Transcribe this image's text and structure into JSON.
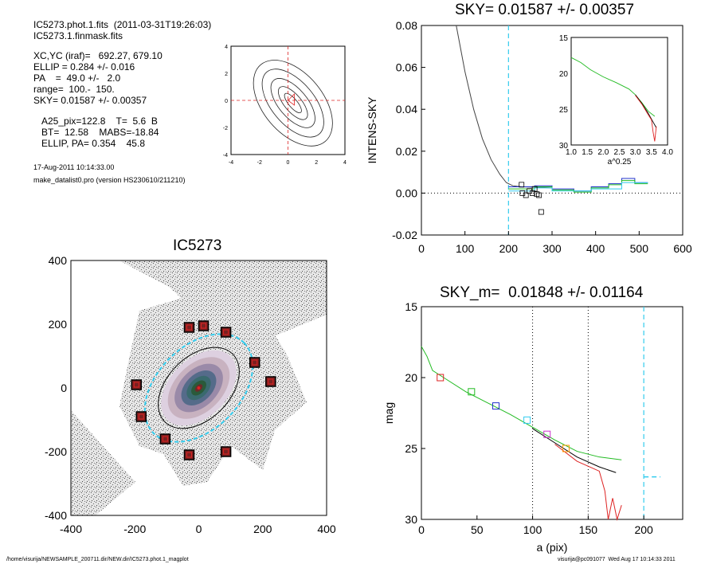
{
  "info": {
    "line1": "IC5273.phot.1.fits  (2011-03-31T19:26:03)",
    "line2": "IC5273.1.finmask.fits",
    "line3": "XC,YC (iraf)=   692.27, 679.10",
    "line4": "ELLIP = 0.284 +/- 0.016",
    "line5": "PA    =  49.0 +/-   2.0",
    "line6": "range=  100.-  150.",
    "line7": "SKY= 0.01587 +/- 0.00357",
    "line8": "A25_pix=122.8    T=  5.6  B",
    "line9": "BT=  12.58    MABS=-18.84",
    "line10": "ELLIP, PA= 0.354    45.8",
    "date": "17-Aug-2011 10:14:33.00",
    "program": "make_datalist0.pro (version HS230610/211210)"
  },
  "footer": {
    "path": "/home/visurija/NEWSAMPLE_200711.dir/NEW.dir/IC5273.phot.1_magplot",
    "user": "visurija@pc091077  Wed Aug 17 10:14:33 2011"
  },
  "colors": {
    "cyan": "#33ccee",
    "red": "#dd2222",
    "green": "#22bb22",
    "blue": "#2233cc",
    "magenta": "#cc33cc",
    "gray": "#555555"
  },
  "chart_data": [
    {
      "type": "line",
      "panel": "contour",
      "title": "",
      "xlim": [
        -4,
        4
      ],
      "ylim": [
        -4,
        4
      ],
      "xticks": [
        "-4",
        "-2",
        "0",
        "2",
        "4"
      ],
      "yticks": [
        "-4",
        "-2",
        "0",
        "2",
        "4"
      ],
      "contour_semi_axes": [
        [
          0.3,
          0.9
        ],
        [
          0.6,
          1.5
        ],
        [
          1.0,
          2.2
        ],
        [
          1.5,
          3.0
        ],
        [
          2.1,
          3.7
        ]
      ]
    },
    {
      "type": "line",
      "panel": "sky_profile",
      "title": "SKY= 0.01587 +/- 0.00357",
      "xlabel": "",
      "ylabel": "INTENS-SKY",
      "xlim": [
        0,
        600
      ],
      "ylim": [
        -0.02,
        0.08
      ],
      "xticks": [
        "0",
        "100",
        "200",
        "300",
        "400",
        "500",
        "600"
      ],
      "yticks": [
        "-0.02",
        "0.00",
        "0.02",
        "0.04",
        "0.06",
        "0.08"
      ],
      "sky_line_x": 200,
      "profile": [
        [
          80,
          0.08
        ],
        [
          100,
          0.058
        ],
        [
          120,
          0.04
        ],
        [
          140,
          0.026
        ],
        [
          160,
          0.016
        ],
        [
          180,
          0.009
        ],
        [
          195,
          0.005
        ],
        [
          210,
          0.0035
        ],
        [
          230,
          0.003
        ],
        [
          260,
          0.0028
        ],
        [
          300,
          0.0025
        ]
      ],
      "sky_boxes": [
        [
          230,
          0.004
        ],
        [
          232,
          0.0
        ],
        [
          240,
          -0.001
        ],
        [
          248,
          0.001
        ],
        [
          255,
          0.0
        ],
        [
          260,
          0.002
        ],
        [
          265,
          -0.0005
        ],
        [
          270,
          -0.001
        ],
        [
          275,
          -0.009
        ]
      ],
      "steps": [
        {
          "name": "blue",
          "points": [
            [
              200,
              0.003
            ],
            [
              260,
              0.003
            ],
            [
              260,
              0.0035
            ],
            [
              300,
              0.0035
            ],
            [
              300,
              0.002
            ],
            [
              350,
              0.002
            ],
            [
              350,
              0.001
            ],
            [
              390,
              0.001
            ],
            [
              390,
              0.003
            ],
            [
              430,
              0.003
            ],
            [
              430,
              0.0045
            ],
            [
              460,
              0.0045
            ],
            [
              460,
              0.007
            ],
            [
              490,
              0.007
            ],
            [
              490,
              0.005
            ],
            [
              520,
              0.005
            ]
          ]
        },
        {
          "name": "green",
          "points": [
            [
              200,
              0.002
            ],
            [
              260,
              0.002
            ],
            [
              260,
              0.003
            ],
            [
              300,
              0.003
            ],
            [
              300,
              0.0015
            ],
            [
              350,
              0.0015
            ],
            [
              350,
              0.0005
            ],
            [
              390,
              0.0005
            ],
            [
              390,
              0.0025
            ],
            [
              430,
              0.0025
            ],
            [
              430,
              0.004
            ],
            [
              460,
              0.004
            ],
            [
              460,
              0.006
            ],
            [
              490,
              0.006
            ],
            [
              490,
              0.0045
            ],
            [
              520,
              0.0045
            ]
          ]
        },
        {
          "name": "cyan",
          "points": [
            [
              200,
              0.001
            ],
            [
              260,
              0.001
            ],
            [
              260,
              0.0025
            ],
            [
              300,
              0.0025
            ],
            [
              300,
              0.001
            ],
            [
              390,
              0.001
            ],
            [
              390,
              0.002
            ],
            [
              460,
              0.002
            ],
            [
              460,
              0.005
            ],
            [
              520,
              0.005
            ]
          ]
        }
      ]
    },
    {
      "type": "line",
      "panel": "inset",
      "xlabel": "a^0.25",
      "xlim": [
        1.0,
        4.0
      ],
      "ylim": [
        15,
        30
      ],
      "xticks": [
        "1.0",
        "1.5",
        "2.0",
        "2.5",
        "3.0",
        "3.5",
        "4.0"
      ],
      "yticks": [
        "15",
        "20",
        "25",
        "30"
      ],
      "series": [
        {
          "name": "green",
          "points": [
            [
              1.0,
              17.8
            ],
            [
              1.3,
              18.5
            ],
            [
              1.6,
              19.5
            ],
            [
              2.0,
              20.5
            ],
            [
              2.4,
              21.3
            ],
            [
              2.8,
              22.2
            ],
            [
              3.0,
              23.0
            ],
            [
              3.2,
              24.1
            ],
            [
              3.4,
              25.3
            ],
            [
              3.6,
              26.0
            ]
          ]
        },
        {
          "name": "black",
          "points": [
            [
              3.0,
              23.0
            ],
            [
              3.2,
              24.2
            ],
            [
              3.4,
              25.6
            ],
            [
              3.55,
              26.8
            ],
            [
              3.65,
              27.6
            ]
          ]
        },
        {
          "name": "red",
          "points": [
            [
              3.0,
              23.1
            ],
            [
              3.2,
              24.3
            ],
            [
              3.4,
              25.8
            ],
            [
              3.5,
              26.5
            ],
            [
              3.55,
              28.2
            ],
            [
              3.6,
              29.5
            ],
            [
              3.65,
              27.4
            ]
          ]
        }
      ]
    },
    {
      "type": "scatter",
      "panel": "image",
      "title": "IC5273",
      "xlim": [
        -400,
        400
      ],
      "ylim": [
        -400,
        400
      ],
      "xticks": [
        "-400",
        "-200",
        "0",
        "200",
        "400"
      ],
      "yticks": [
        "-400",
        "-200",
        "0",
        "200",
        "400"
      ],
      "star_boxes": [
        [
          -30,
          190
        ],
        [
          15,
          195
        ],
        [
          85,
          175
        ],
        [
          175,
          80
        ],
        [
          225,
          20
        ],
        [
          -195,
          10
        ],
        [
          -180,
          -90
        ],
        [
          -105,
          -160
        ],
        [
          -30,
          -210
        ],
        [
          85,
          -200
        ]
      ],
      "ellipse_a25": {
        "a": 200,
        "b": 130,
        "angle_deg": 45
      }
    },
    {
      "type": "line",
      "panel": "mag_profile",
      "title": "SKY_m=  0.01848 +/- 0.01164",
      "xlabel": "a (pix)",
      "ylabel": "mag",
      "xlim": [
        0,
        235
      ],
      "ylim": [
        15,
        30
      ],
      "xticks": [
        "0",
        "50",
        "100",
        "150",
        "200"
      ],
      "yticks": [
        "15",
        "20",
        "25",
        "30"
      ],
      "vlines_dotted": [
        100,
        150
      ],
      "sky_line_x": 200,
      "series": [
        {
          "name": "green",
          "points": [
            [
              0,
              17.8
            ],
            [
              5,
              18.5
            ],
            [
              10,
              19.5
            ],
            [
              20,
              20.0
            ],
            [
              40,
              21.0
            ],
            [
              60,
              21.8
            ],
            [
              80,
              22.6
            ],
            [
              100,
              23.5
            ],
            [
              120,
              24.4
            ],
            [
              140,
              25.2
            ],
            [
              160,
              25.6
            ],
            [
              180,
              25.8
            ]
          ]
        },
        {
          "name": "black",
          "points": [
            [
              100,
              23.6
            ],
            [
              120,
              24.6
            ],
            [
              140,
              25.6
            ],
            [
              160,
              26.3
            ],
            [
              175,
              26.7
            ]
          ]
        },
        {
          "name": "red",
          "points": [
            [
              120,
              24.7
            ],
            [
              140,
              25.9
            ],
            [
              160,
              26.6
            ],
            [
              165,
              28.0
            ],
            [
              168,
              30.0
            ],
            [
              172,
              28.5
            ],
            [
              176,
              30.0
            ],
            [
              180,
              29.0
            ]
          ]
        },
        {
          "name": "cyan",
          "points": [
            [
              200,
              27.0
            ],
            [
              215,
              27.0
            ]
          ]
        }
      ],
      "markers": [
        {
          "x": 17,
          "y": 20.0,
          "color": "red"
        },
        {
          "x": 45,
          "y": 21.0,
          "color": "green"
        },
        {
          "x": 67,
          "y": 22.0,
          "color": "blue"
        },
        {
          "x": 95,
          "y": 23.0,
          "color": "cyan"
        },
        {
          "x": 113,
          "y": 24.0,
          "color": "magenta"
        },
        {
          "x": 130,
          "y": 25.0,
          "color": "orange"
        }
      ]
    }
  ]
}
